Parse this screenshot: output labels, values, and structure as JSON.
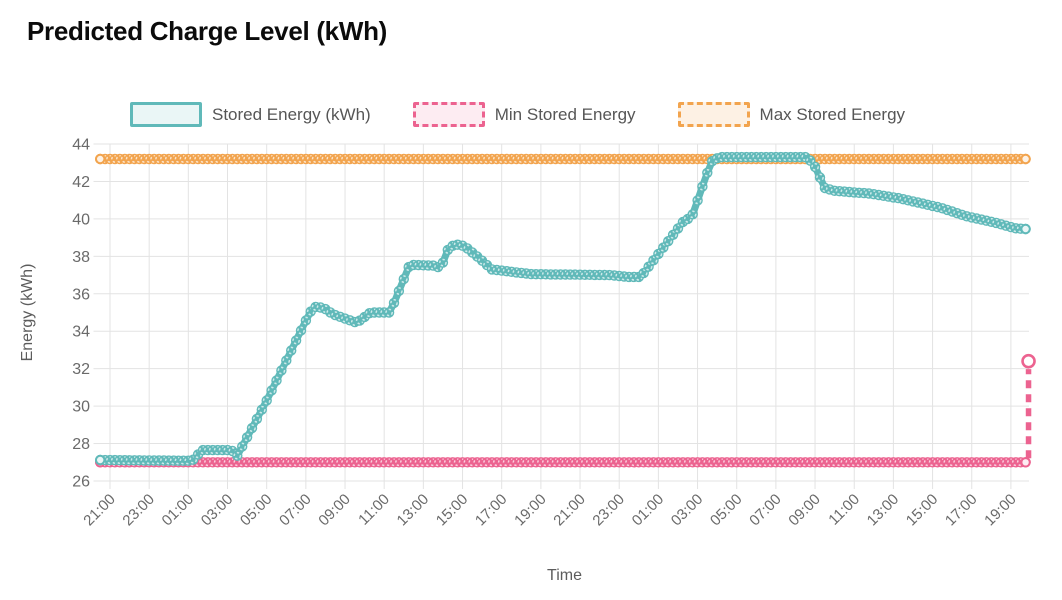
{
  "title": "Predicted Charge Level (kWh)",
  "legend": {
    "items": [
      {
        "label": "Stored Energy (kWh)",
        "style": "solid",
        "color_key": "stored"
      },
      {
        "label": "Min Stored Energy",
        "style": "dashed",
        "color_key": "min"
      },
      {
        "label": "Max Stored Energy",
        "style": "dashed",
        "color_key": "max"
      }
    ]
  },
  "colors": {
    "stored": "#60b9b9",
    "stored_fill": "#eaf6f6",
    "min": "#ec6390",
    "min_fill": "#fdecf2",
    "max": "#f2a44e",
    "max_fill": "#fdf1e4",
    "grid": "#e3e3e3",
    "tick_text": "#6a6a6a",
    "axis_text": "#5c5c5c",
    "title_text": "#0b0b0b"
  },
  "axes": {
    "x_label": "Time",
    "y_label": "Energy (kWh)",
    "y_min": 26,
    "y_max": 44,
    "y_ticks": [
      44,
      42,
      40,
      38,
      36,
      34,
      32,
      30,
      28,
      26
    ],
    "x_ticks": [
      "21:00",
      "23:00",
      "01:00",
      "03:00",
      "05:00",
      "07:00",
      "09:00",
      "11:00",
      "13:00",
      "15:00",
      "17:00",
      "19:00",
      "21:00",
      "23:00",
      "01:00",
      "03:00",
      "05:00",
      "07:00",
      "09:00",
      "11:00",
      "13:00",
      "15:00",
      "17:00",
      "19:00"
    ],
    "x_tick_interval_hours": 2
  },
  "chart_data": {
    "type": "line",
    "title": "Predicted Charge Level (kWh)",
    "xlabel": "Time",
    "ylabel": "Energy (kWh)",
    "ylim": [
      26,
      44
    ],
    "x_axis_note": "48h horizon, hours measured from first tick 21:00; samples every 15 min",
    "sample_step_hours": 0.25,
    "h_start": -0.5,
    "h_end": 46.9,
    "series": [
      {
        "name": "Stored Energy (kWh)",
        "color_key": "stored",
        "shape": "breakpoints",
        "breakpoints": [
          [
            -0.5,
            27.12
          ],
          [
            4.2,
            27.08
          ],
          [
            4.7,
            27.65
          ],
          [
            6.2,
            27.65
          ],
          [
            6.5,
            27.35
          ],
          [
            8.0,
            30.3
          ],
          [
            10.2,
            35.0
          ],
          [
            10.5,
            35.3
          ],
          [
            10.9,
            35.25
          ],
          [
            11.4,
            34.9
          ],
          [
            12.6,
            34.45
          ],
          [
            13.3,
            35.0
          ],
          [
            14.3,
            35.0
          ],
          [
            15.3,
            37.55
          ],
          [
            16.6,
            37.5
          ],
          [
            16.9,
            37.35
          ],
          [
            17.2,
            38.3
          ],
          [
            17.6,
            38.65
          ],
          [
            18.1,
            38.55
          ],
          [
            18.8,
            37.95
          ],
          [
            19.5,
            37.3
          ],
          [
            21.5,
            37.05
          ],
          [
            25.5,
            37.0
          ],
          [
            26.5,
            36.9
          ],
          [
            27.1,
            36.9
          ],
          [
            29.3,
            39.9
          ],
          [
            29.7,
            40.1
          ],
          [
            30.7,
            43.05
          ],
          [
            31.1,
            43.3
          ],
          [
            35.5,
            43.3
          ],
          [
            35.9,
            43.0
          ],
          [
            36.5,
            41.65
          ],
          [
            37.0,
            41.5
          ],
          [
            38.8,
            41.35
          ],
          [
            40.3,
            41.1
          ],
          [
            42.4,
            40.6
          ],
          [
            43.7,
            40.15
          ],
          [
            45.2,
            39.8
          ],
          [
            46.2,
            39.5
          ],
          [
            46.9,
            39.45
          ]
        ]
      },
      {
        "name": "Min Stored Energy",
        "color_key": "min",
        "shape": "constant",
        "value": 27.0,
        "end_jump": {
          "to": 32.4,
          "style": "dashed-vertical-with-open-circle"
        }
      },
      {
        "name": "Max Stored Energy",
        "color_key": "max",
        "shape": "constant",
        "value": 43.2
      }
    ]
  }
}
